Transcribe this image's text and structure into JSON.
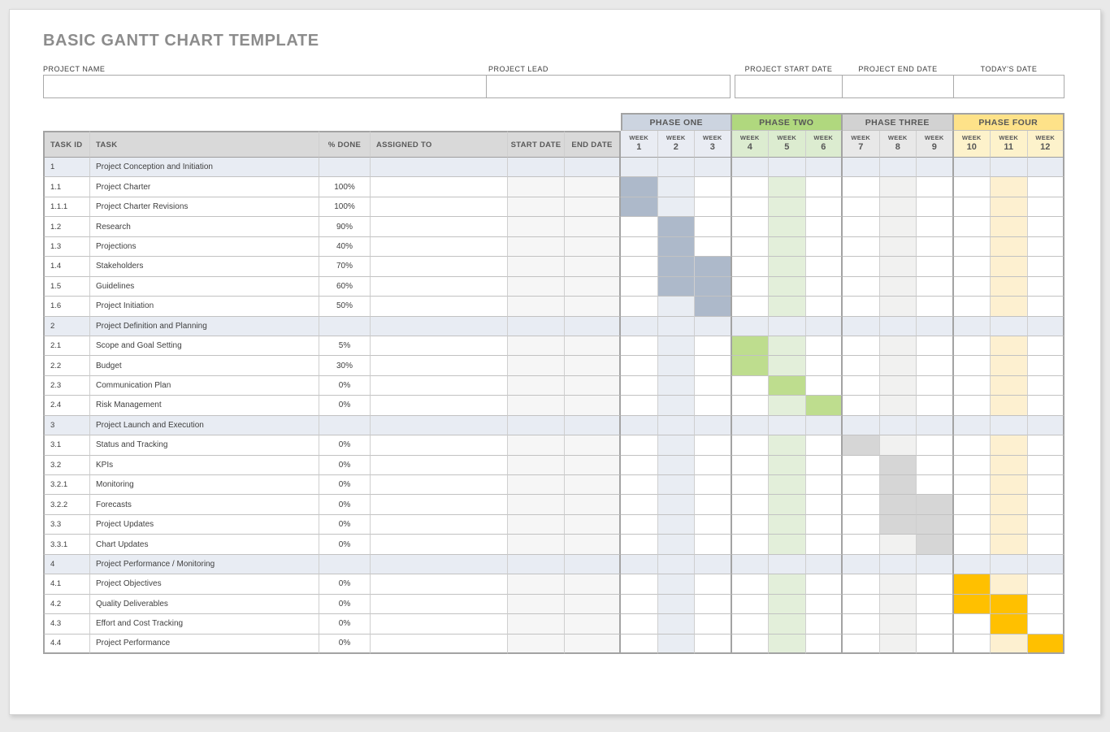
{
  "page": {
    "title": "BASIC GANTT CHART TEMPLATE"
  },
  "form": {
    "project_name": {
      "label": "PROJECT NAME",
      "value": ""
    },
    "project_lead": {
      "label": "PROJECT LEAD",
      "value": ""
    },
    "project_start_date": {
      "label": "PROJECT START DATE",
      "value": ""
    },
    "project_end_date": {
      "label": "PROJECT END DATE",
      "value": ""
    },
    "todays_date": {
      "label": "TODAY'S DATE",
      "value": ""
    }
  },
  "chart_data": {
    "type": "table",
    "subtype": "gantt",
    "title": "BASIC GANTT CHART TEMPLATE",
    "columns": [
      "TASK ID",
      "TASK",
      "% DONE",
      "ASSIGNED TO",
      "START DATE",
      "END DATE"
    ],
    "week_label": "WEEK",
    "weeks": [
      1,
      2,
      3,
      4,
      5,
      6,
      7,
      8,
      9,
      10,
      11,
      12
    ],
    "tinted_weeks": [
      2,
      5,
      8,
      11
    ],
    "phases": [
      {
        "name": "PHASE ONE",
        "weeks": [
          1,
          2,
          3
        ],
        "header_color": "#ccd4e0",
        "week_header_color": "#e9ecf3",
        "bar_color": "#adb9ca",
        "tint_color": "#e9edf3"
      },
      {
        "name": "PHASE TWO",
        "weeks": [
          4,
          5,
          6
        ],
        "header_color": "#b0d87e",
        "week_header_color": "#dcecd0",
        "bar_color": "#bedd8e",
        "tint_color": "#e3efda"
      },
      {
        "name": "PHASE THREE",
        "weeks": [
          7,
          8,
          9
        ],
        "header_color": "#d2d2d2",
        "week_header_color": "#e8e8e8",
        "bar_color": "#d6d6d6",
        "tint_color": "#f1f1f0"
      },
      {
        "name": "PHASE FOUR",
        "weeks": [
          10,
          11,
          12
        ],
        "header_color": "#fee289",
        "week_header_color": "#fdf2cb",
        "bar_color": "#ffc000",
        "tint_color": "#fdf0d0"
      }
    ],
    "rows": [
      {
        "id": "1",
        "task": "Project Conception and Initiation",
        "done": "",
        "section": true,
        "bar_weeks": []
      },
      {
        "id": "1.1",
        "task": "Project Charter",
        "done": "100%",
        "section": false,
        "bar_weeks": [
          1
        ]
      },
      {
        "id": "1.1.1",
        "task": "Project Charter Revisions",
        "done": "100%",
        "section": false,
        "bar_weeks": [
          1
        ]
      },
      {
        "id": "1.2",
        "task": "Research",
        "done": "90%",
        "section": false,
        "bar_weeks": [
          2
        ]
      },
      {
        "id": "1.3",
        "task": "Projections",
        "done": "40%",
        "section": false,
        "bar_weeks": [
          2
        ]
      },
      {
        "id": "1.4",
        "task": "Stakeholders",
        "done": "70%",
        "section": false,
        "bar_weeks": [
          2,
          3
        ]
      },
      {
        "id": "1.5",
        "task": "Guidelines",
        "done": "60%",
        "section": false,
        "bar_weeks": [
          2,
          3
        ]
      },
      {
        "id": "1.6",
        "task": "Project Initiation",
        "done": "50%",
        "section": false,
        "bar_weeks": [
          3
        ]
      },
      {
        "id": "2",
        "task": "Project Definition and Planning",
        "done": "",
        "section": true,
        "bar_weeks": []
      },
      {
        "id": "2.1",
        "task": "Scope and Goal Setting",
        "done": "5%",
        "section": false,
        "bar_weeks": [
          4
        ]
      },
      {
        "id": "2.2",
        "task": "Budget",
        "done": "30%",
        "section": false,
        "bar_weeks": [
          4
        ]
      },
      {
        "id": "2.3",
        "task": "Communication Plan",
        "done": "0%",
        "section": false,
        "bar_weeks": [
          5
        ]
      },
      {
        "id": "2.4",
        "task": "Risk Management",
        "done": "0%",
        "section": false,
        "bar_weeks": [
          6
        ]
      },
      {
        "id": "3",
        "task": "Project Launch and Execution",
        "done": "",
        "section": true,
        "bar_weeks": []
      },
      {
        "id": "3.1",
        "task": "Status and Tracking",
        "done": "0%",
        "section": false,
        "bar_weeks": [
          7
        ]
      },
      {
        "id": "3.2",
        "task": "KPIs",
        "done": "0%",
        "section": false,
        "bar_weeks": [
          8
        ]
      },
      {
        "id": "3.2.1",
        "task": "Monitoring",
        "done": "0%",
        "section": false,
        "bar_weeks": [
          8
        ]
      },
      {
        "id": "3.2.2",
        "task": "Forecasts",
        "done": "0%",
        "section": false,
        "bar_weeks": [
          8,
          9
        ]
      },
      {
        "id": "3.3",
        "task": "Project Updates",
        "done": "0%",
        "section": false,
        "bar_weeks": [
          8,
          9
        ]
      },
      {
        "id": "3.3.1",
        "task": "Chart Updates",
        "done": "0%",
        "section": false,
        "bar_weeks": [
          9
        ]
      },
      {
        "id": "4",
        "task": "Project Performance / Monitoring",
        "done": "",
        "section": true,
        "bar_weeks": []
      },
      {
        "id": "4.1",
        "task": "Project Objectives",
        "done": "0%",
        "section": false,
        "bar_weeks": [
          10
        ]
      },
      {
        "id": "4.2",
        "task": "Quality Deliverables",
        "done": "0%",
        "section": false,
        "bar_weeks": [
          10,
          11
        ]
      },
      {
        "id": "4.3",
        "task": "Effort and Cost Tracking",
        "done": "0%",
        "section": false,
        "bar_weeks": [
          11
        ]
      },
      {
        "id": "4.4",
        "task": "Project Performance",
        "done": "0%",
        "section": false,
        "bar_weeks": [
          12
        ]
      }
    ],
    "colors": {
      "table_header_bg": "#d9d9d9",
      "section_row_bg": "#e8ecf3",
      "date_cell_bg": "#f6f6f6",
      "header_text": "#595959",
      "body_text": "#404040",
      "title_text": "#8c8c8c"
    }
  }
}
